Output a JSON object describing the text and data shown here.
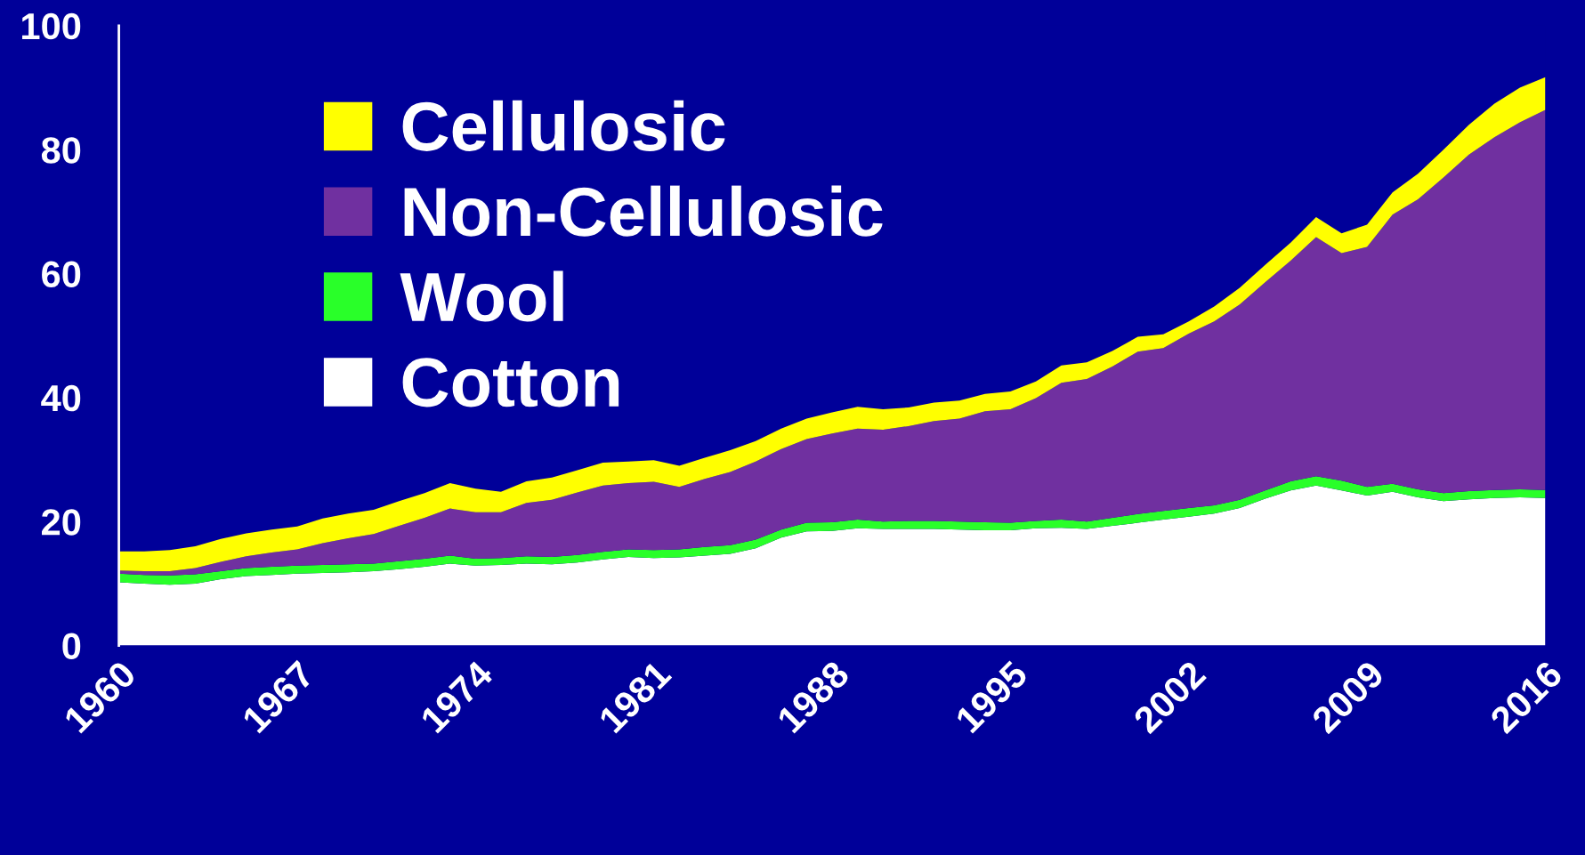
{
  "chart_data": {
    "type": "area",
    "stacked": true,
    "x": [
      1960,
      1961,
      1962,
      1963,
      1964,
      1965,
      1966,
      1967,
      1968,
      1969,
      1970,
      1971,
      1972,
      1973,
      1974,
      1975,
      1976,
      1977,
      1978,
      1979,
      1980,
      1981,
      1982,
      1983,
      1984,
      1985,
      1986,
      1987,
      1988,
      1989,
      1990,
      1991,
      1992,
      1993,
      1994,
      1995,
      1996,
      1997,
      1998,
      1999,
      2000,
      2001,
      2002,
      2003,
      2004,
      2005,
      2006,
      2007,
      2008,
      2009,
      2010,
      2011,
      2012,
      2013,
      2014,
      2015,
      2016
    ],
    "series": [
      {
        "name": "Cotton",
        "color": "#ffffff",
        "values": [
          10.2,
          10.0,
          9.8,
          10.0,
          10.7,
          11.2,
          11.4,
          11.6,
          11.7,
          11.8,
          12.0,
          12.3,
          12.7,
          13.2,
          12.9,
          13.0,
          13.2,
          13.1,
          13.4,
          13.9,
          14.3,
          14.1,
          14.2,
          14.5,
          14.8,
          15.7,
          17.4,
          18.4,
          18.5,
          18.9,
          18.8,
          18.8,
          18.8,
          18.7,
          18.6,
          18.6,
          18.9,
          19.0,
          18.8,
          19.3,
          19.8,
          20.3,
          20.8,
          21.3,
          22.2,
          23.7,
          25.0,
          25.8,
          25.0,
          24.2,
          24.8,
          23.9,
          23.3,
          23.6,
          23.8,
          23.9,
          23.8
        ]
      },
      {
        "name": "Wool",
        "color": "#29ff29",
        "values": [
          1.4,
          1.4,
          1.5,
          1.5,
          1.3,
          1.3,
          1.3,
          1.3,
          1.3,
          1.3,
          1.2,
          1.3,
          1.3,
          1.3,
          1.1,
          1.1,
          1.2,
          1.2,
          1.2,
          1.2,
          1.2,
          1.3,
          1.3,
          1.4,
          1.4,
          1.4,
          1.3,
          1.4,
          1.4,
          1.4,
          1.2,
          1.3,
          1.3,
          1.3,
          1.3,
          1.2,
          1.2,
          1.3,
          1.2,
          1.3,
          1.4,
          1.4,
          1.4,
          1.3,
          1.3,
          1.3,
          1.5,
          1.5,
          1.6,
          1.4,
          1.3,
          1.3,
          1.3,
          1.3,
          1.3,
          1.3,
          1.3
        ]
      },
      {
        "name": "Non-Cellulosic",
        "color": "#7030a0",
        "values": [
          0.5,
          0.6,
          0.7,
          1.0,
          1.5,
          1.9,
          2.3,
          2.6,
          3.5,
          4.2,
          4.8,
          5.7,
          6.6,
          7.6,
          7.5,
          7.4,
          8.6,
          9.2,
          10.1,
          10.7,
          10.7,
          11.0,
          10.1,
          11.0,
          11.8,
          12.6,
          13.0,
          13.5,
          14.3,
          14.7,
          14.8,
          15.3,
          16.1,
          16.6,
          17.9,
          18.3,
          19.8,
          22.1,
          23.0,
          24.4,
          26.2,
          26.3,
          28.1,
          29.7,
          31.5,
          33.6,
          35.6,
          38.6,
          36.7,
          38.7,
          43.4,
          46.8,
          50.9,
          54.3,
          56.9,
          59.2,
          61.3
        ]
      },
      {
        "name": "Cellulosic",
        "color": "#ffff00",
        "values": [
          3.1,
          3.2,
          3.4,
          3.5,
          3.7,
          3.7,
          3.7,
          3.7,
          4.0,
          4.0,
          3.9,
          4.0,
          4.0,
          4.1,
          3.8,
          3.3,
          3.5,
          3.6,
          3.6,
          3.7,
          3.5,
          3.5,
          3.4,
          3.4,
          3.5,
          3.3,
          3.3,
          3.3,
          3.4,
          3.5,
          3.3,
          3.0,
          3.0,
          2.9,
          2.8,
          2.9,
          2.7,
          2.8,
          2.7,
          2.5,
          2.4,
          2.2,
          2.0,
          2.4,
          2.7,
          2.8,
          2.9,
          3.2,
          3.2,
          3.6,
          3.6,
          4.1,
          4.5,
          4.8,
          5.4,
          5.6,
          5.3
        ]
      }
    ],
    "xlim": [
      1960,
      2016
    ],
    "xticks": [
      1960,
      1967,
      1974,
      1981,
      1988,
      1995,
      2002,
      2009,
      2016
    ],
    "ylim": [
      0,
      100
    ],
    "yticks": [
      0,
      20,
      40,
      60,
      80,
      100
    ],
    "grid": false,
    "legend": "top left"
  }
}
